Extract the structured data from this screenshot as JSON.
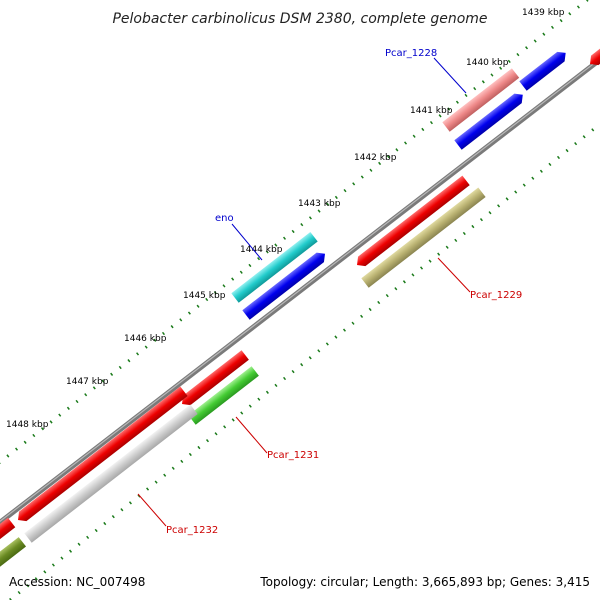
{
  "title": "Pelobacter carbinolicus DSM 2380, complete genome",
  "footer": {
    "accession": "Accession: NC_007498",
    "summary": "Topology: circular; Length: 3,665,893 bp; Genes: 3,415"
  },
  "kbp_labels": [
    "1439 kbp",
    "1440 kbp",
    "1441 kbp",
    "1442 kbp",
    "1443 kbp",
    "1444 kbp",
    "1445 kbp",
    "1446 kbp",
    "1447 kbp",
    "1448 kbp"
  ],
  "gene_labels": {
    "pcar_1228": "Pcar_1228",
    "eno": "eno",
    "pcar_1229": "Pcar_1229",
    "pcar_1231": "Pcar_1231",
    "pcar_1232": "Pcar_1232"
  },
  "colors": {
    "backbone": "#8c8c8c",
    "ticks": "#1a7a1a",
    "forward_cds": "#0000ee",
    "reverse_cds": "#ee0000",
    "pink": "#ee8888",
    "cyan": "#22cccc",
    "olive": "#b8b070",
    "green": "#44cc33",
    "grey": "#cccccc",
    "dark_olive": "#6a8a22",
    "label_blue": "#0000cc",
    "label_red": "#cc0000"
  }
}
